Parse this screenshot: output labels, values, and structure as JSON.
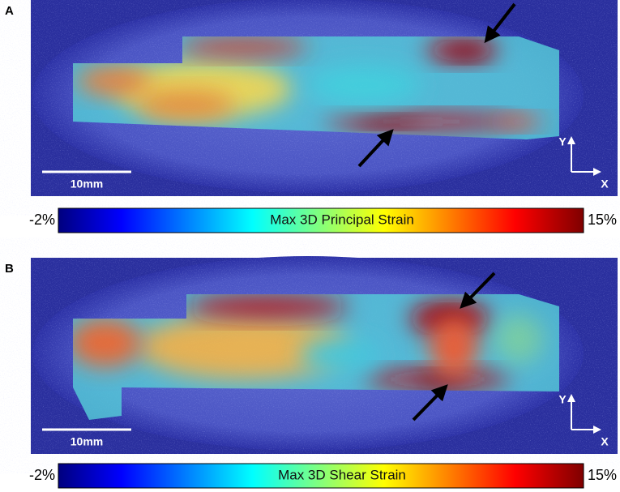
{
  "panels": [
    {
      "label": "A",
      "scale_bar": "10mm",
      "axis_y": "Y",
      "axis_x": "X",
      "colorbar": {
        "min": "-2%",
        "max": "15%",
        "title": "Max 3D Principal Strain"
      }
    },
    {
      "label": "B",
      "scale_bar": "10mm",
      "axis_y": "Y",
      "axis_x": "X",
      "colorbar": {
        "min": "-2%",
        "max": "15%",
        "title": "Max 3D Shear Strain"
      }
    }
  ]
}
